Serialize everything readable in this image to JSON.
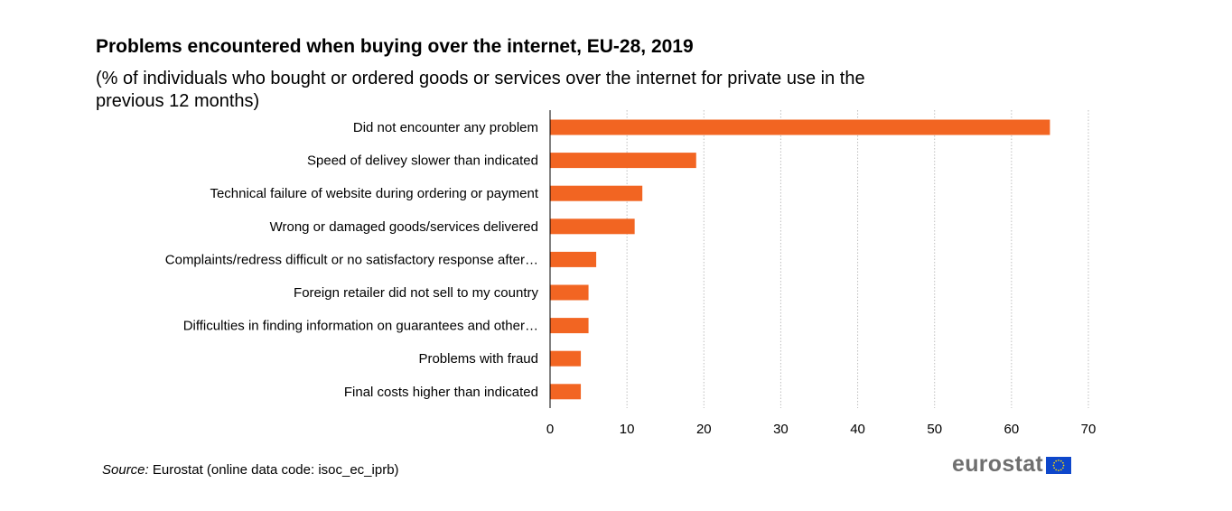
{
  "header": {
    "title": "Problems encountered when buying over the internet, EU-28, 2019",
    "subtitle": "(% of individuals who bought or ordered goods or services over the internet for private use in the previous 12 months)"
  },
  "footer": {
    "source_label": "Source:",
    "source_text": " Eurostat (online data code: isoc_ec_iprb)",
    "logo_text": "eurostat",
    "logo_icon": "eu-flag-icon"
  },
  "colors": {
    "bar": "#f26522",
    "grid": "#bfbfbf",
    "flag_blue": "#0e47cb",
    "flag_star": "#ffdd00"
  },
  "chart_data": {
    "type": "bar",
    "orientation": "horizontal",
    "categories": [
      "Did not encounter any problem",
      "Speed of delivey slower than indicated",
      "Technical failure of website during  ordering or payment",
      "Wrong or damaged goods/services delivered",
      "Complaints/redress difficult or no satisfactory response after…",
      "Foreign retailer did not sell to my country",
      "Difficulties in finding information on guarantees and other…",
      "Problems with fraud",
      "Final costs higher than indicated"
    ],
    "values": [
      65,
      19,
      12,
      11,
      6,
      5,
      5,
      4,
      4
    ],
    "xlim": [
      0,
      70
    ],
    "xticks": [
      0,
      10,
      20,
      30,
      40,
      50,
      60,
      70
    ],
    "grid": true,
    "legend": "none"
  }
}
